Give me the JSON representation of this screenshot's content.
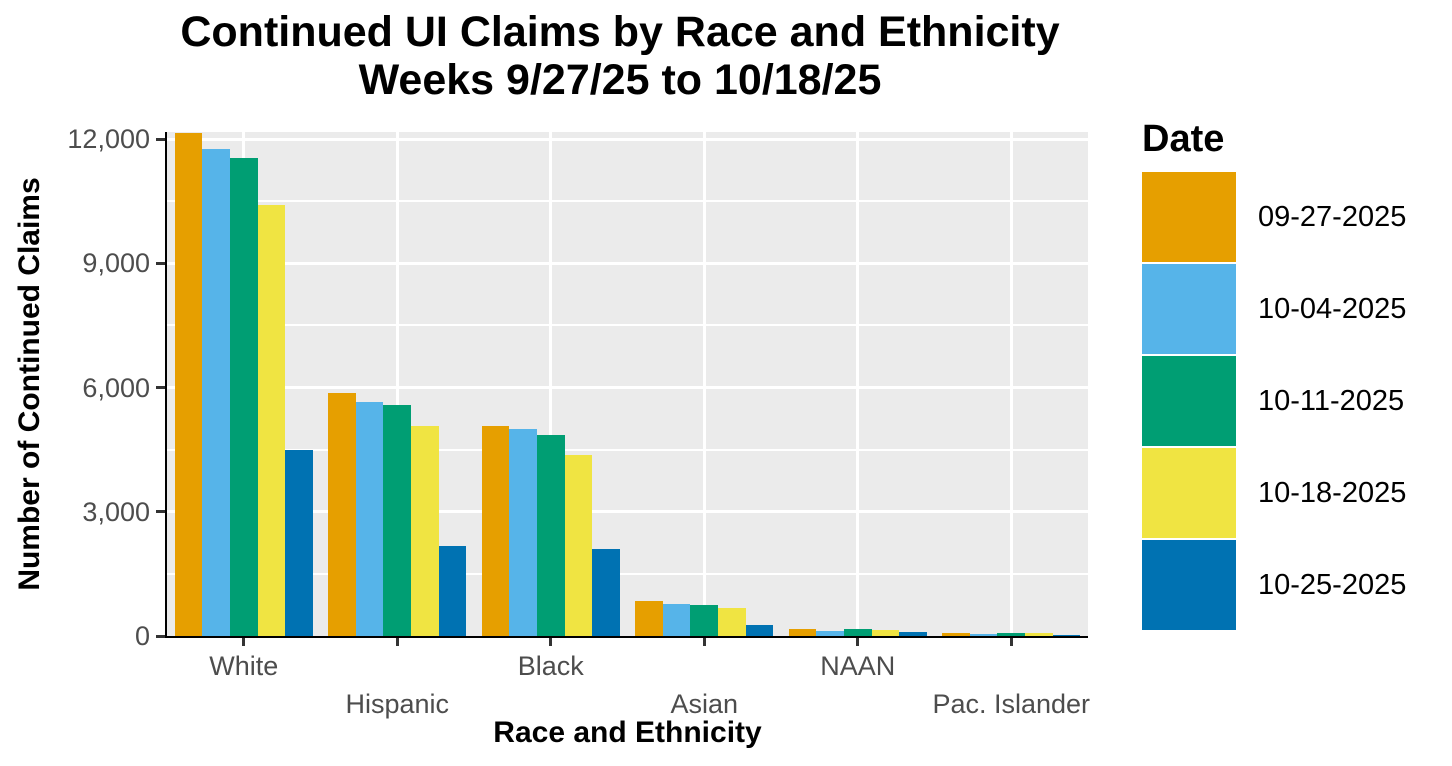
{
  "chart_data": {
    "type": "bar",
    "title": "Continued UI Claims by Race and Ethnicity",
    "subtitle": "Weeks 9/27/25 to 10/18/25",
    "xlabel": "Race and Ethnicity",
    "ylabel": "Number of Continued Claims",
    "legend_title": "Date",
    "legend_position": "right",
    "grid": "on",
    "categories": [
      "White",
      "Hispanic",
      "Black",
      "Asian",
      "NAAN",
      "Pac. Islander"
    ],
    "series": [
      {
        "name": "09-27-2025",
        "color": "#E69F00",
        "values": [
          12150,
          5870,
          5070,
          850,
          160,
          70
        ]
      },
      {
        "name": "10-04-2025",
        "color": "#56B4E9",
        "values": [
          11750,
          5640,
          5000,
          770,
          130,
          55
        ]
      },
      {
        "name": "10-11-2025",
        "color": "#009E73",
        "values": [
          11550,
          5580,
          4860,
          750,
          160,
          70
        ]
      },
      {
        "name": "10-18-2025",
        "color": "#F0E442",
        "values": [
          10400,
          5080,
          4380,
          685,
          145,
          65
        ]
      },
      {
        "name": "10-25-2025",
        "color": "#0072B2",
        "values": [
          4480,
          2180,
          2100,
          265,
          90,
          30
        ]
      }
    ],
    "y_ticks": [
      0,
      3000,
      6000,
      9000,
      12000
    ],
    "y_tick_labels": [
      "0",
      "3,000",
      "6,000",
      "9,000",
      "12,000"
    ],
    "y_minor_ticks": [
      1500,
      4500,
      7500,
      10500
    ],
    "ylim": [
      0,
      12170
    ],
    "colors": {
      "panel_background": "#EBEBEB",
      "gridline": "#FFFFFF",
      "axis_line": "#000000",
      "tick_mark": "#333333",
      "tick_label": "#4D4D4D",
      "title_text": "#000000"
    }
  }
}
